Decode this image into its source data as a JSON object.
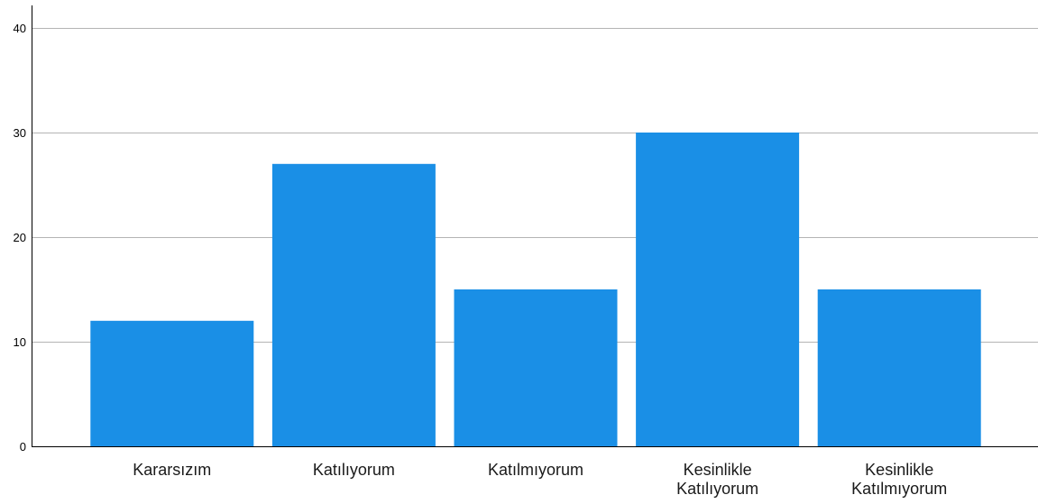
{
  "chart_data": {
    "type": "bar",
    "categories": [
      [
        "Kararsızım"
      ],
      [
        "Katılıyorum"
      ],
      [
        "Katılmıyorum"
      ],
      [
        "Kesinlikle",
        "Katılıyorum"
      ],
      [
        "Kesinlikle",
        "Katılmıyorum"
      ]
    ],
    "values": [
      12,
      27,
      15,
      30,
      15
    ],
    "ylim": [
      0,
      40
    ],
    "yticks": [
      0,
      10,
      20,
      30,
      40
    ],
    "grid": true,
    "bar_color": "#1a8fe6",
    "grid_color": "#b4b4b4",
    "axis_color": "#000000",
    "title": "",
    "xlabel": "",
    "ylabel": ""
  }
}
